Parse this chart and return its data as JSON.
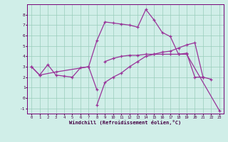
{
  "bg_color": "#d0eee8",
  "line_color": "#993399",
  "grid_color": "#99ccbb",
  "xlim": [
    -0.5,
    23.5
  ],
  "ylim": [
    -1.5,
    9.0
  ],
  "xticks": [
    0,
    1,
    2,
    3,
    4,
    5,
    6,
    7,
    8,
    9,
    10,
    11,
    12,
    13,
    14,
    15,
    16,
    17,
    18,
    19,
    20,
    21,
    22,
    23
  ],
  "yticks": [
    -1,
    0,
    1,
    2,
    3,
    4,
    5,
    6,
    7,
    8
  ],
  "xlabel": "Windchill (Refroidissement éolien,°C)",
  "segments": [
    [
      [
        0,
        3.0
      ],
      [
        1,
        2.2
      ],
      [
        2,
        3.2
      ],
      [
        3,
        2.2
      ],
      [
        4,
        2.1
      ],
      [
        5,
        2.0
      ],
      [
        6,
        2.9
      ],
      [
        7,
        3.0
      ],
      [
        8,
        5.5
      ],
      [
        9,
        7.3
      ],
      [
        10,
        7.2
      ],
      [
        11,
        7.1
      ],
      [
        12,
        7.0
      ],
      [
        13,
        6.8
      ],
      [
        14,
        8.5
      ],
      [
        15,
        7.5
      ],
      [
        16,
        6.3
      ],
      [
        17,
        5.9
      ],
      [
        18,
        4.2
      ],
      [
        19,
        4.3
      ],
      [
        20,
        2.0
      ],
      [
        21,
        2.0
      ]
    ],
    [
      [
        0,
        3.0
      ],
      [
        1,
        2.2
      ],
      [
        3,
        2.5
      ],
      [
        7,
        3.0
      ],
      [
        8,
        0.8
      ]
    ],
    [
      [
        8,
        -0.7
      ],
      [
        9,
        1.5
      ],
      [
        10,
        2.0
      ],
      [
        11,
        2.4
      ],
      [
        12,
        3.0
      ],
      [
        13,
        3.5
      ],
      [
        14,
        4.0
      ],
      [
        15,
        4.2
      ],
      [
        16,
        4.4
      ],
      [
        17,
        4.5
      ],
      [
        18,
        4.8
      ],
      [
        19,
        5.1
      ],
      [
        20,
        5.3
      ],
      [
        21,
        2.0
      ],
      [
        22,
        1.8
      ]
    ],
    [
      [
        9,
        3.5
      ],
      [
        10,
        3.8
      ],
      [
        11,
        4.0
      ],
      [
        12,
        4.1
      ],
      [
        13,
        4.1
      ],
      [
        14,
        4.2
      ],
      [
        15,
        4.2
      ],
      [
        16,
        4.2
      ],
      [
        17,
        4.2
      ],
      [
        18,
        4.2
      ],
      [
        19,
        4.2
      ],
      [
        23,
        -1.2
      ]
    ]
  ]
}
